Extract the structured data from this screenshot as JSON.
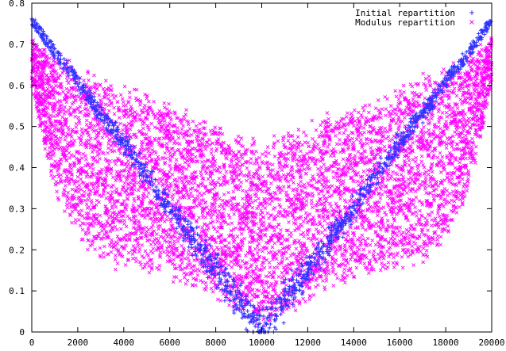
{
  "chart_data": {
    "type": "scatter",
    "title": "",
    "xlabel": "",
    "ylabel": "",
    "xlim": [
      0,
      20000
    ],
    "ylim": [
      0,
      0.8
    ],
    "grid": false,
    "legend_position": "top-right",
    "x_ticks": [
      "0",
      "2000",
      "4000",
      "6000",
      "8000",
      "10000",
      "12000",
      "14000",
      "16000",
      "18000",
      "20000"
    ],
    "y_ticks": [
      "0",
      "0.1",
      "0.2",
      "0.3",
      "0.4",
      "0.5",
      "0.6",
      "0.7",
      "0.8"
    ],
    "series": [
      {
        "name": "Initial repartition",
        "marker": "+",
        "color": "#3333ff",
        "description_shape": "V-shaped band, y ≈ 0.76·|x−10000|/10000",
        "x": [
          0,
          500,
          1000,
          2000,
          3000,
          4000,
          5000,
          6000,
          7000,
          8000,
          9000,
          9500,
          10000,
          10500,
          11000,
          12000,
          13000,
          14000,
          15000,
          16000,
          17000,
          18000,
          19000,
          19500,
          20000
        ],
        "y": [
          0.76,
          0.72,
          0.68,
          0.61,
          0.53,
          0.46,
          0.38,
          0.3,
          0.23,
          0.15,
          0.08,
          0.04,
          0.0,
          0.04,
          0.08,
          0.15,
          0.23,
          0.3,
          0.38,
          0.46,
          0.53,
          0.61,
          0.68,
          0.72,
          0.76
        ]
      },
      {
        "name": "Modulus repartition",
        "marker": "x",
        "color": "#ff00ff",
        "description_shape": "dense band between a bowl-shaped lower envelope and a V-shaped upper envelope",
        "x": [
          0,
          500,
          1000,
          2000,
          3000,
          4000,
          5000,
          6000,
          7000,
          8000,
          9000,
          10000,
          11000,
          12000,
          13000,
          14000,
          15000,
          16000,
          17000,
          18000,
          19000,
          19500,
          20000
        ],
        "y_upper": [
          0.72,
          0.7,
          0.69,
          0.66,
          0.63,
          0.61,
          0.59,
          0.56,
          0.54,
          0.52,
          0.49,
          0.47,
          0.5,
          0.52,
          0.54,
          0.56,
          0.58,
          0.61,
          0.63,
          0.66,
          0.69,
          0.7,
          0.72
        ],
        "y_lower": [
          0.6,
          0.45,
          0.33,
          0.21,
          0.16,
          0.14,
          0.13,
          0.12,
          0.1,
          0.07,
          0.03,
          0.0,
          0.03,
          0.07,
          0.1,
          0.12,
          0.13,
          0.14,
          0.16,
          0.21,
          0.33,
          0.45,
          0.6
        ]
      }
    ]
  }
}
